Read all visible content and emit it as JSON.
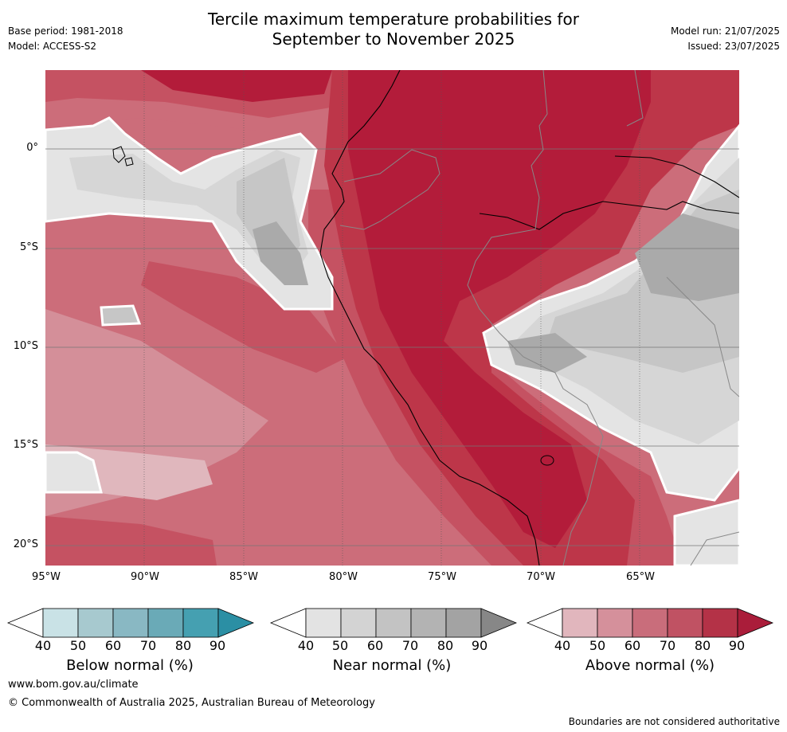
{
  "title": {
    "line1": "Tercile maximum temperature probabilities for",
    "line2": "September to November 2025"
  },
  "meta": {
    "base_period": "Base period: 1981-2018",
    "model": "Model: ACCESS-S2",
    "model_run": "Model run: 21/07/2025",
    "issued": "Issued: 23/07/2025"
  },
  "axes": {
    "lat_labels": [
      "0°",
      "5°S",
      "10°S",
      "15°S",
      "20°S"
    ],
    "lon_labels": [
      "95°W",
      "90°W",
      "85°W",
      "80°W",
      "75°W",
      "70°W",
      "65°W"
    ]
  },
  "colorbars": [
    {
      "label": "Below normal (%)",
      "ticks": [
        "40",
        "50",
        "60",
        "70",
        "80",
        "90"
      ],
      "colors": [
        "#ffffff",
        "#c9e2e6",
        "#a7c9cf",
        "#89b8c3",
        "#6aaab7",
        "#45a0b1",
        "#2b8fa4"
      ]
    },
    {
      "label": "Near normal (%)",
      "ticks": [
        "40",
        "50",
        "60",
        "70",
        "80",
        "90"
      ],
      "colors": [
        "#ffffff",
        "#e3e3e3",
        "#d3d3d3",
        "#c3c3c3",
        "#b3b3b3",
        "#a3a3a3",
        "#878787"
      ]
    },
    {
      "label": "Above normal (%)",
      "ticks": [
        "40",
        "50",
        "60",
        "70",
        "80",
        "90"
      ],
      "colors": [
        "#ffffff",
        "#e1b6bd",
        "#d5909b",
        "#c96d7b",
        "#c05263",
        "#b43247",
        "#aa1d3a"
      ]
    }
  ],
  "footer": {
    "site": "www.bom.gov.au/climate",
    "copyright": "© Commonwealth of Australia 2025, Australian Bureau of Meteorology",
    "disclaimer": "Boundaries are not considered authoritative"
  },
  "colors": {
    "above_90": "#b31c3a",
    "above_80": "#bd3649",
    "above_70": "#c55262",
    "above_60": "#cc6d7a",
    "above_50": "#d48f99",
    "above_40": "#e0b7bd",
    "near_40": "#e4e4e4",
    "near_50": "#d6d6d6",
    "near_60": "#c6c6c6",
    "near_70": "#aaaaaa"
  }
}
